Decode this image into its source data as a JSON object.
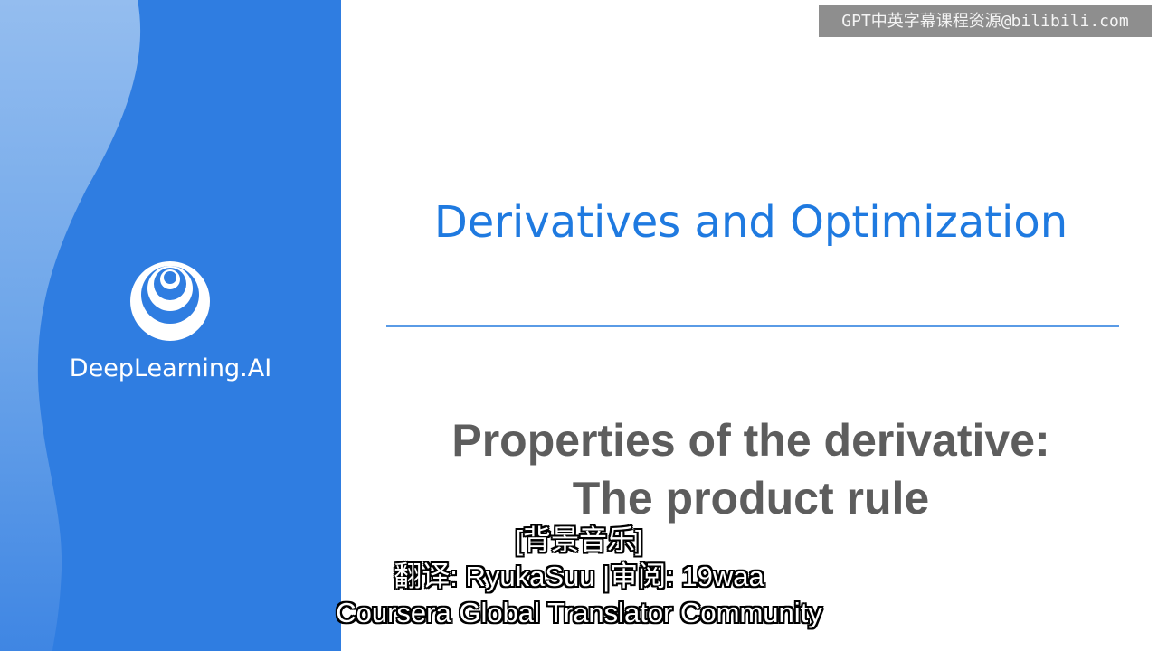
{
  "watermark": {
    "text": "GPT中英字幕课程资源@bilibili.com"
  },
  "brand": {
    "name": "DeepLearning.AI",
    "panel_color": "#2f7de1",
    "wave_color": "#8db8ec",
    "logo_icon": "concentric-circles-logo-icon"
  },
  "slide": {
    "course_title": "Derivatives and Optimization",
    "lesson_title_line1": "Properties of the derivative:",
    "lesson_title_line2": "The product rule",
    "accent_color": "#1f7ae0",
    "text_color": "#5d5d5d"
  },
  "subtitles": {
    "line1": "[背景音乐]",
    "line2": "翻译: RyukaSuu |审阅: 19waa",
    "line3": "Coursera Global Translator Community"
  }
}
